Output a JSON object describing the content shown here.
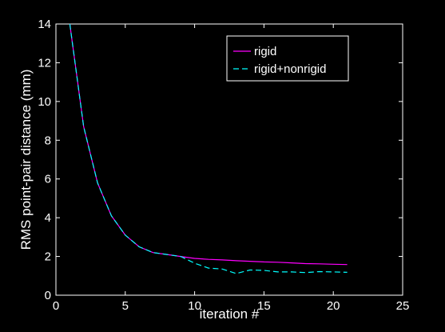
{
  "chart_data": {
    "type": "line",
    "xlabel": "iteration #",
    "ylabel": "RMS point-pair distance (mm)",
    "xlim": [
      0,
      25
    ],
    "ylim": [
      0,
      14
    ],
    "xticks": [
      0,
      5,
      10,
      15,
      20,
      25
    ],
    "yticks": [
      0,
      2,
      4,
      6,
      8,
      10,
      12,
      14
    ],
    "grid": false,
    "legend_position": "top-right",
    "background": "#000000",
    "axis_color": "#ffffff",
    "series": [
      {
        "name": "rigid",
        "color": "#ff00ff",
        "style": "solid",
        "x": [
          1,
          2,
          3,
          4,
          5,
          6,
          7,
          8,
          9,
          10,
          11,
          12,
          13,
          14,
          15,
          16,
          17,
          18,
          19,
          20,
          21
        ],
        "y": [
          14.0,
          8.7,
          5.8,
          4.1,
          3.1,
          2.5,
          2.2,
          2.1,
          2.0,
          1.9,
          1.85,
          1.82,
          1.78,
          1.75,
          1.72,
          1.7,
          1.67,
          1.63,
          1.62,
          1.6,
          1.58
        ]
      },
      {
        "name": "rigid+nonrigid",
        "color": "#00ffff",
        "style": "dashed",
        "x": [
          1,
          2,
          3,
          4,
          5,
          6,
          7,
          8,
          9,
          10,
          11,
          12,
          13,
          14,
          15,
          16,
          17,
          18,
          19,
          20,
          21
        ],
        "y": [
          14.0,
          8.7,
          5.8,
          4.1,
          3.1,
          2.5,
          2.2,
          2.1,
          2.0,
          1.65,
          1.4,
          1.35,
          1.12,
          1.3,
          1.28,
          1.2,
          1.2,
          1.17,
          1.22,
          1.2,
          1.18
        ]
      }
    ]
  }
}
